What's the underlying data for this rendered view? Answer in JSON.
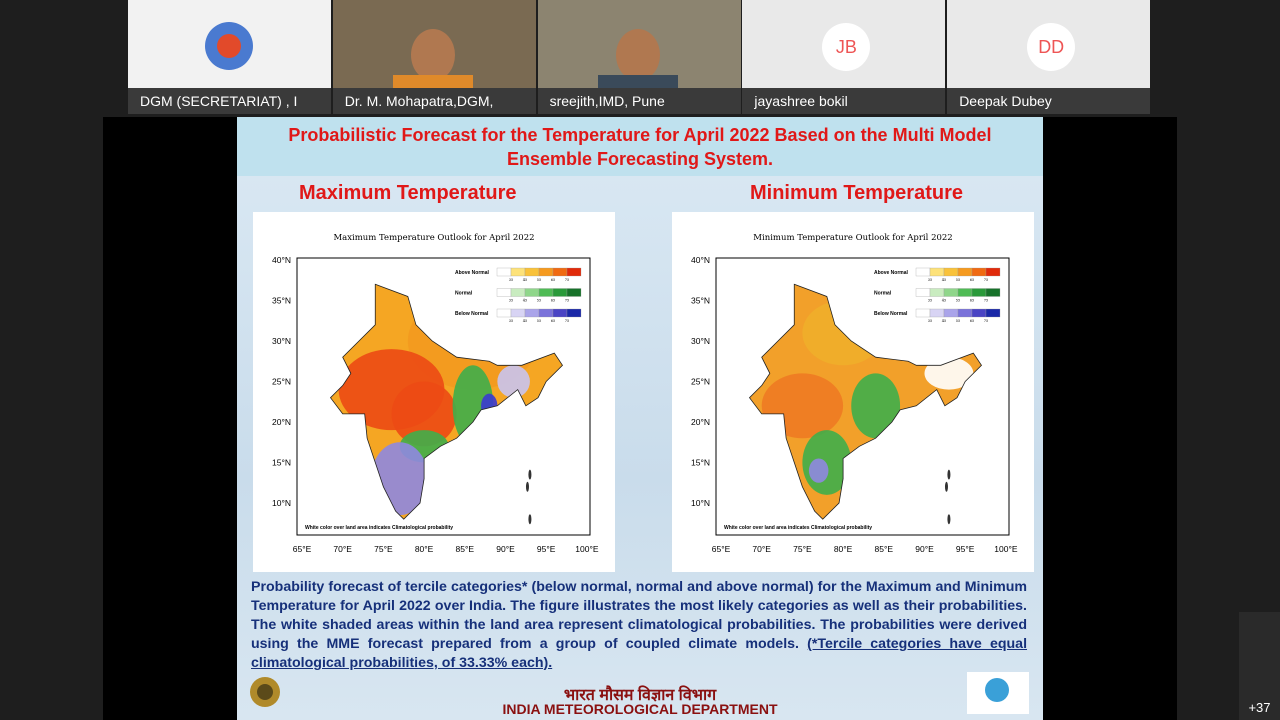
{
  "participants": [
    {
      "name": "DGM (SECRETARIAT) , I"
    },
    {
      "name": "Dr. M. Mohapatra,DGM,"
    },
    {
      "name": "sreejith,IMD, Pune"
    },
    {
      "name": "jayashree bokil",
      "initials": "JB"
    },
    {
      "name": "Deepak Dubey",
      "initials": "DD"
    }
  ],
  "slide": {
    "title": "Probabilistic Forecast for the Temperature for April  2022 Based on the Multi Model Ensemble Forecasting System.",
    "panels": [
      {
        "heading": "Maximum Temperature",
        "map_title": "Maximum Temperature Outlook for April 2022"
      },
      {
        "heading": "Minimum Temperature",
        "map_title": "Minimum Temperature Outlook for April 2022"
      }
    ],
    "map_legend": {
      "rows": [
        "Above Normal",
        "Normal",
        "Below Normal"
      ],
      "ticks": [
        "35",
        "45",
        "55",
        "65",
        "75"
      ]
    },
    "lat_labels": [
      "40°N",
      "35°N",
      "30°N",
      "25°N",
      "20°N",
      "15°N",
      "10°N"
    ],
    "lon_labels": [
      "65°E",
      "70°E",
      "75°E",
      "80°E",
      "85°E",
      "90°E",
      "95°E",
      "100°E"
    ],
    "map_note": "White color over land area indicates Climatological probability",
    "description": "Probability forecast of tercile categories* (below normal, normal and above normal) for the Maximum and Minimum Temperature for April 2022  over India. The figure illustrates the most likely categories as well as their probabilities. The white shaded areas within the land area represent climatological probabilities. The probabilities were derived using the MME forecast prepared from a group of coupled climate models.",
    "footnote": "(*Tercile categories have equal climatological probabilities, of 33.33% each).",
    "org_hindi": "भारत मौसम विज्ञान विभाग",
    "org_english": "INDIA METEOROLOGICAL DEPARTMENT"
  },
  "more_participants": "+37"
}
